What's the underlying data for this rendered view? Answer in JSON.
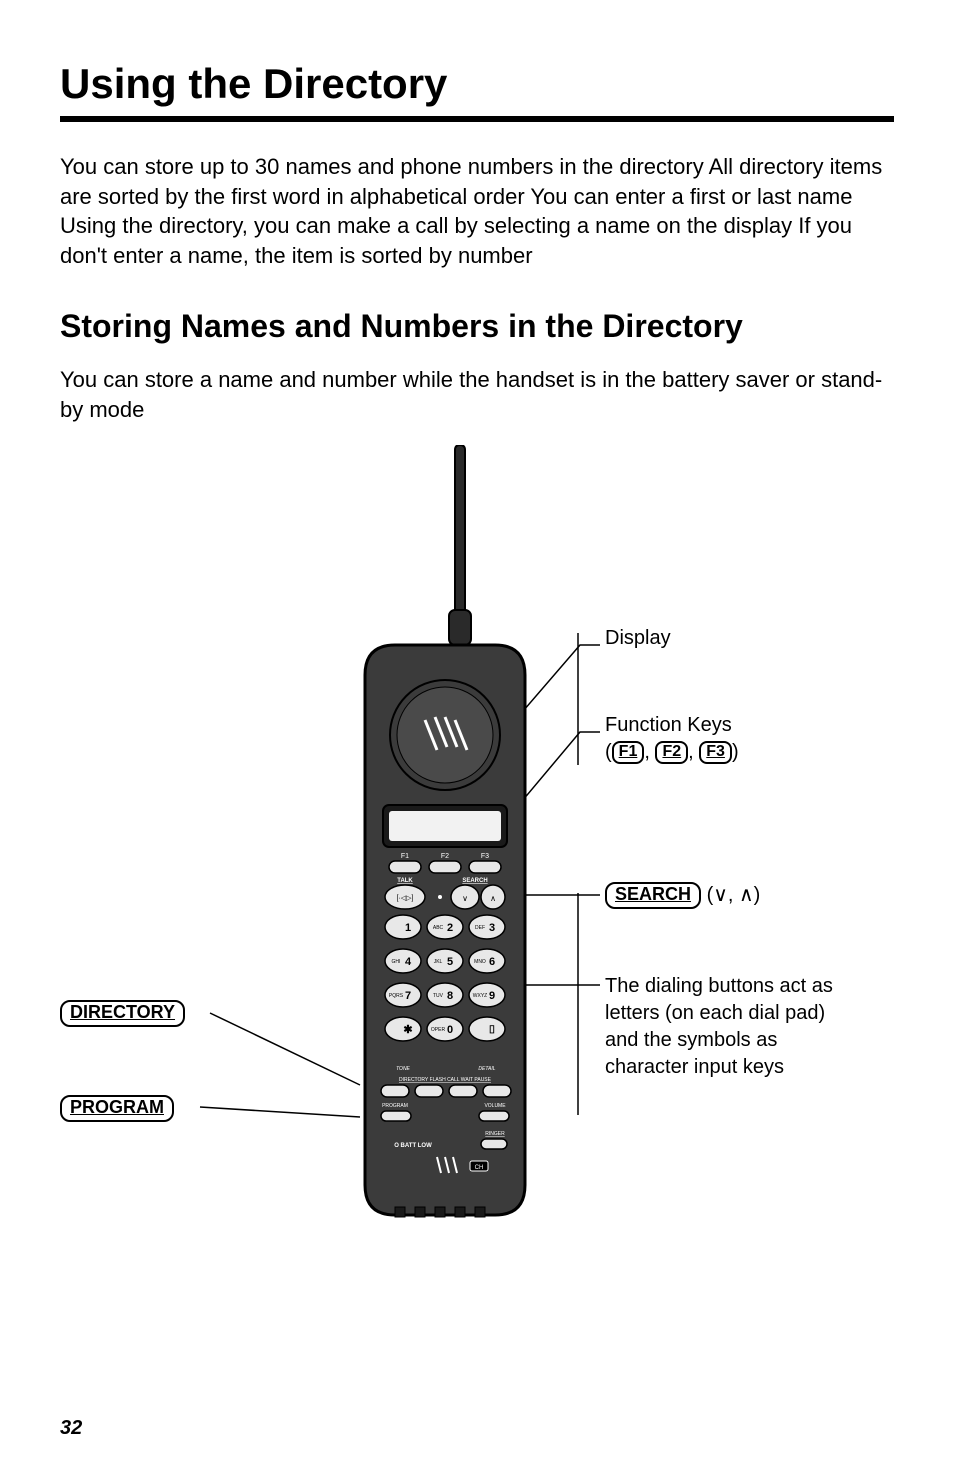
{
  "page": {
    "title": "Using the Directory",
    "intro": "You can store up to 30 names and phone numbers in the directory  All directory items are sorted by the first word in alphabetical order  You can enter a first or last name  Using the directory, you can make a call by selecting a name on the display  If you don't enter a name, the item is sorted by number",
    "h2": "Storing Names and Numbers in the Directory",
    "body": "You can store a name and number while the handset is in the battery saver or stand-by mode",
    "page_number": "32"
  },
  "keys": {
    "directory": "DIRECTORY",
    "program": "PROGRAM",
    "search": "SEARCH",
    "f1": "F1",
    "f2": "F2",
    "f3": "F3"
  },
  "callouts": {
    "display": "Display",
    "function_keys": "Function Keys",
    "search_suffix": "(∨, ∧)",
    "dialing": "The dialing buttons act as letters (on each dial pad) and the symbols as character input keys"
  },
  "handset": {
    "labels": {
      "talk": "TALK",
      "search": "SEARCH",
      "tone": "TONE",
      "detail": "DETAIL",
      "bottom_row": "DIRECTORY FLASH  CALL WAIT  PAUSE",
      "program": "PROGRAM",
      "volume": "VOLUME",
      "ringer": "RINGER",
      "batt_low": "O BATT LOW",
      "ch": "CH",
      "f1": "F1",
      "f2": "F2",
      "f3": "F3"
    },
    "keypad": {
      "r1": [
        {
          "s": "",
          "n": "1"
        },
        {
          "s": "ABC",
          "n": "2"
        },
        {
          "s": "DEF",
          "n": "3"
        }
      ],
      "r2": [
        {
          "s": "GHI",
          "n": "4"
        },
        {
          "s": "JKL",
          "n": "5"
        },
        {
          "s": "MNO",
          "n": "6"
        }
      ],
      "r3": [
        {
          "s": "PQRS",
          "n": "7"
        },
        {
          "s": "TUV",
          "n": "8"
        },
        {
          "s": "WXYZ",
          "n": "9"
        }
      ],
      "r4": [
        {
          "s": "",
          "n": "✱"
        },
        {
          "s": "OPER",
          "n": "0"
        },
        {
          "s": "",
          "n": "⌷"
        }
      ]
    },
    "colors": {
      "body": "#3b3b3b",
      "body_dark": "#1a1a1a",
      "screen": "#f2f2f2",
      "button": "#e8e8e8",
      "outline": "#000000"
    }
  }
}
